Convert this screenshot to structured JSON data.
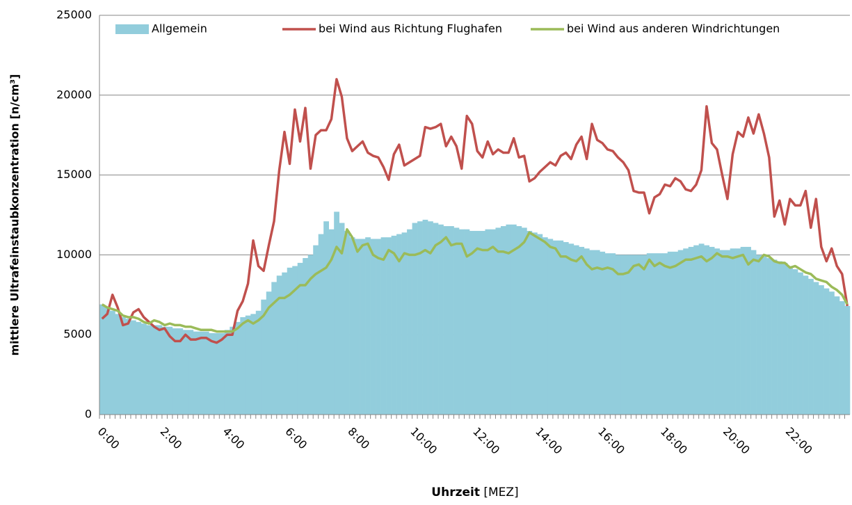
{
  "chart_data": {
    "type": "combo",
    "ylabel": "mittlere Ultrafeinstaubkonzentration [n/cm³]",
    "xlabel": "Uhrzeit",
    "xlabel_unit": "[MEZ]",
    "categories": [
      "0:00",
      null,
      null,
      null,
      null,
      null,
      null,
      null,
      null,
      null,
      null,
      null,
      "2:00",
      null,
      null,
      null,
      null,
      null,
      null,
      null,
      null,
      null,
      null,
      null,
      "4:00",
      null,
      null,
      null,
      null,
      null,
      null,
      null,
      null,
      null,
      null,
      null,
      "6:00",
      null,
      null,
      null,
      null,
      null,
      null,
      null,
      null,
      null,
      null,
      null,
      "8:00",
      null,
      null,
      null,
      null,
      null,
      null,
      null,
      null,
      null,
      null,
      null,
      "10:00",
      null,
      null,
      null,
      null,
      null,
      null,
      null,
      null,
      null,
      null,
      null,
      "12:00",
      null,
      null,
      null,
      null,
      null,
      null,
      null,
      null,
      null,
      null,
      null,
      "14:00",
      null,
      null,
      null,
      null,
      null,
      null,
      null,
      null,
      null,
      null,
      null,
      "16:00",
      null,
      null,
      null,
      null,
      null,
      null,
      null,
      null,
      null,
      null,
      null,
      "18:00",
      null,
      null,
      null,
      null,
      null,
      null,
      null,
      null,
      null,
      null,
      null,
      "20:00",
      null,
      null,
      null,
      null,
      null,
      null,
      null,
      null,
      null,
      null,
      null,
      "22:00",
      null,
      null,
      null,
      null,
      null,
      null,
      null,
      null,
      null,
      null,
      null
    ],
    "series": [
      {
        "name": "Allgemein",
        "type": "bar",
        "color": "#92cddc",
        "values": [
          6900,
          6700,
          6500,
          6300,
          6100,
          6000,
          5900,
          5800,
          5700,
          5600,
          5600,
          5600,
          5500,
          5500,
          5400,
          5400,
          5300,
          5300,
          5200,
          5200,
          5200,
          5100,
          5100,
          5100,
          5300,
          5500,
          5800,
          6100,
          6200,
          6300,
          6500,
          7200,
          7700,
          8300,
          8700,
          8900,
          9200,
          9300,
          9500,
          9800,
          10000,
          10600,
          11300,
          12100,
          11600,
          12700,
          12000,
          11500,
          11100,
          11000,
          11000,
          11100,
          11000,
          11000,
          11100,
          11100,
          11200,
          11300,
          11400,
          11600,
          12000,
          12100,
          12200,
          12100,
          12000,
          11900,
          11800,
          11800,
          11700,
          11600,
          11600,
          11500,
          11500,
          11500,
          11600,
          11600,
          11700,
          11800,
          11900,
          11900,
          11800,
          11700,
          11500,
          11400,
          11300,
          11100,
          11000,
          10900,
          10900,
          10800,
          10700,
          10600,
          10500,
          10400,
          10300,
          10300,
          10200,
          10100,
          10100,
          10000,
          10000,
          10000,
          10000,
          10000,
          10000,
          10100,
          10100,
          10100,
          10100,
          10200,
          10200,
          10300,
          10400,
          10500,
          10600,
          10700,
          10600,
          10500,
          10400,
          10300,
          10300,
          10400,
          10400,
          10500,
          10500,
          10300,
          10000,
          9900,
          9800,
          9700,
          9600,
          9500,
          9300,
          9100,
          8900,
          8700,
          8500,
          8300,
          8100,
          7900,
          7700,
          7400,
          7100,
          6800
        ]
      },
      {
        "name": "bei Wind aus Richtung Flughafen",
        "type": "line",
        "color": "#c0504d",
        "values": [
          6000,
          6300,
          7500,
          6700,
          5600,
          5700,
          6400,
          6600,
          6100,
          5800,
          5500,
          5300,
          5400,
          4900,
          4600,
          4600,
          5000,
          4700,
          4700,
          4800,
          4800,
          4600,
          4500,
          4700,
          5000,
          5000,
          6500,
          7100,
          8200,
          10900,
          9300,
          9000,
          10600,
          12100,
          15300,
          17700,
          15700,
          19100,
          17100,
          19200,
          15400,
          17500,
          17800,
          17800,
          18500,
          21000,
          19900,
          17300,
          16500,
          16800,
          17100,
          16400,
          16200,
          16100,
          15500,
          14700,
          16300,
          16900,
          15600,
          15800,
          16000,
          16200,
          18000,
          17900,
          18000,
          18200,
          16800,
          17400,
          16800,
          15400,
          18700,
          18200,
          16500,
          16100,
          17100,
          16300,
          16600,
          16400,
          16400,
          17300,
          16100,
          16200,
          14600,
          14800,
          15200,
          15500,
          15800,
          15600,
          16200,
          16400,
          16000,
          16900,
          17400,
          16000,
          18200,
          17200,
          17000,
          16600,
          16500,
          16100,
          15800,
          15300,
          14000,
          13900,
          13900,
          12600,
          13600,
          13800,
          14400,
          14300,
          14800,
          14600,
          14100,
          14000,
          14400,
          15300,
          19300,
          17000,
          16600,
          15000,
          13500,
          16300,
          17700,
          17400,
          18600,
          17600,
          18800,
          17600,
          16100,
          12400,
          13400,
          11900,
          13500,
          13100,
          13100,
          14000,
          11700,
          13500,
          10500,
          9600,
          10400,
          9300,
          8800,
          6800
        ]
      },
      {
        "name": "bei Wind aus anderen Windrichtungen",
        "type": "line",
        "color": "#9bbb59",
        "values": [
          6900,
          6700,
          6600,
          6500,
          6200,
          6100,
          6100,
          6000,
          5800,
          5700,
          5900,
          5800,
          5600,
          5700,
          5600,
          5600,
          5500,
          5500,
          5400,
          5300,
          5300,
          5300,
          5200,
          5200,
          5200,
          5200,
          5400,
          5700,
          5900,
          5700,
          5900,
          6200,
          6700,
          7000,
          7300,
          7300,
          7500,
          7800,
          8100,
          8100,
          8500,
          8800,
          9000,
          9200,
          9700,
          10500,
          10100,
          11600,
          11100,
          10200,
          10600,
          10700,
          10000,
          9800,
          9700,
          10300,
          10100,
          9600,
          10100,
          10000,
          10000,
          10100,
          10300,
          10100,
          10600,
          10800,
          11100,
          10600,
          10700,
          10700,
          9900,
          10100,
          10400,
          10300,
          10300,
          10500,
          10200,
          10200,
          10100,
          10300,
          10500,
          10800,
          11400,
          11200,
          11000,
          10800,
          10500,
          10400,
          9900,
          9900,
          9700,
          9600,
          9900,
          9400,
          9100,
          9200,
          9100,
          9200,
          9100,
          8800,
          8800,
          8900,
          9300,
          9400,
          9100,
          9700,
          9300,
          9500,
          9300,
          9200,
          9300,
          9500,
          9700,
          9700,
          9800,
          9900,
          9600,
          9800,
          10100,
          9900,
          9900,
          9800,
          9900,
          10000,
          9400,
          9700,
          9600,
          10000,
          9900,
          9600,
          9500,
          9500,
          9200,
          9300,
          9100,
          8900,
          8800,
          8500,
          8400,
          8300,
          8000,
          7800,
          7500,
          6900
        ]
      }
    ],
    "ylim": [
      0,
      25000
    ],
    "yticks": [
      0,
      5000,
      10000,
      15000,
      20000,
      25000
    ],
    "grid": true,
    "legend": "top"
  }
}
